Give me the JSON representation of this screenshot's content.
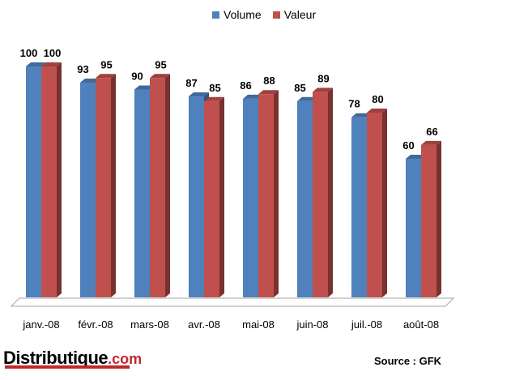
{
  "chart_data": {
    "type": "bar",
    "categories": [
      "janv.-08",
      "févr.-08",
      "mars-08",
      "avr.-08",
      "mai-08",
      "juin-08",
      "juil.-08",
      "août-08"
    ],
    "series": [
      {
        "name": "Volume",
        "color": "#4f81bd",
        "values": [
          100,
          93,
          90,
          87,
          86,
          85,
          78,
          60
        ]
      },
      {
        "name": "Valeur",
        "color": "#c0504d",
        "values": [
          100,
          95,
          95,
          85,
          88,
          89,
          80,
          66
        ]
      }
    ],
    "ylim": [
      0,
      100
    ],
    "grid": false,
    "legend_position": "top-center",
    "data_labels": true
  },
  "brand": {
    "logo_name": "Distributique",
    "logo_suffix": ".com"
  },
  "source": "Source : GFK"
}
